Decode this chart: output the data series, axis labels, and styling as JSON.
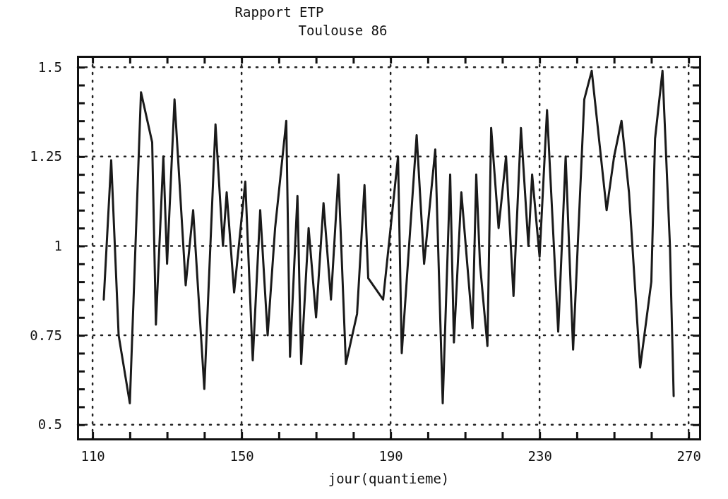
{
  "chart_data": {
    "type": "line",
    "title": "Rapport ETP",
    "subtitle": "Toulouse 86",
    "xlabel": "jour(quantieme)",
    "x": [
      113,
      115,
      117,
      120,
      123,
      126,
      127,
      129,
      130,
      132,
      135,
      137,
      140,
      143,
      145,
      146,
      148,
      151,
      153,
      155,
      157,
      159,
      162,
      163,
      165,
      166,
      168,
      170,
      172,
      174,
      176,
      178,
      181,
      183,
      184,
      188,
      192,
      193,
      197,
      199,
      202,
      204,
      206,
      207,
      209,
      212,
      213,
      214,
      216,
      217,
      219,
      221,
      223,
      225,
      227,
      228,
      230,
      232,
      235,
      237,
      239,
      242,
      244,
      248,
      250,
      252,
      254,
      257,
      260,
      261,
      263,
      265,
      266
    ],
    "series": [
      {
        "color": "#1a1a1a",
        "values": [
          0.85,
          1.24,
          0.75,
          0.56,
          1.43,
          1.29,
          0.78,
          1.25,
          0.95,
          1.41,
          0.89,
          1.1,
          0.6,
          1.34,
          1.0,
          1.15,
          0.87,
          1.18,
          0.68,
          1.1,
          0.75,
          1.05,
          1.35,
          0.69,
          1.14,
          0.67,
          1.05,
          0.8,
          1.12,
          0.85,
          1.2,
          0.67,
          0.81,
          1.17,
          0.91,
          0.85,
          1.25,
          0.7,
          1.31,
          0.95,
          1.27,
          0.56,
          1.2,
          0.73,
          1.15,
          0.77,
          1.2,
          0.95,
          0.72,
          1.33,
          1.05,
          1.25,
          0.86,
          1.33,
          1.0,
          1.2,
          0.97,
          1.38,
          0.76,
          1.25,
          0.71,
          1.41,
          1.49,
          1.1,
          1.25,
          1.35,
          1.15,
          0.66,
          0.9,
          1.3,
          1.49,
          1.0,
          0.58
        ]
      }
    ],
    "xlim": [
      106,
      273
    ],
    "ylim": [
      0.46,
      1.53
    ],
    "xticks": [
      110,
      {
        "value": 120,
        "label": null
      },
      {
        "value": 130,
        "label": null
      },
      {
        "value": 140,
        "label": null
      },
      150,
      {
        "value": 160,
        "label": null
      },
      {
        "value": 170,
        "label": null
      },
      {
        "value": 180,
        "label": null
      },
      190,
      {
        "value": 200,
        "label": null
      },
      {
        "value": 210,
        "label": null
      },
      {
        "value": 220,
        "label": null
      },
      230,
      {
        "value": 240,
        "label": null
      },
      {
        "value": 250,
        "label": null
      },
      {
        "value": 260,
        "label": null
      },
      270
    ],
    "yticks": [
      0.5,
      {
        "value": 0.55,
        "label": null
      },
      {
        "value": 0.6,
        "label": null
      },
      {
        "value": 0.65,
        "label": null
      },
      {
        "value": 0.7,
        "label": null
      },
      0.75,
      {
        "value": 0.8,
        "label": null
      },
      {
        "value": 0.85,
        "label": null
      },
      {
        "value": 0.9,
        "label": null
      },
      {
        "value": 0.95,
        "label": null
      },
      1,
      {
        "value": 1.05,
        "label": null
      },
      {
        "value": 1.1,
        "label": null
      },
      {
        "value": 1.15,
        "label": null
      },
      {
        "value": 1.2,
        "label": null
      },
      1.25,
      {
        "value": 1.3,
        "label": null
      },
      {
        "value": 1.35,
        "label": null
      },
      {
        "value": 1.4,
        "label": null
      },
      {
        "value": 1.45,
        "label": null
      },
      1.5
    ],
    "grid": true,
    "marker": "none",
    "line_style": "solid"
  }
}
